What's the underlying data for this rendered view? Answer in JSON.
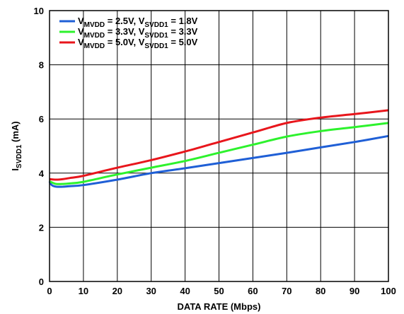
{
  "chart_data": {
    "type": "line",
    "xlabel": "DATA RATE (Mbps)",
    "ylabel": {
      "main": "I",
      "sub": "SVDD1",
      "unit": " (mA)"
    },
    "xlim": [
      0,
      100
    ],
    "ylim": [
      0,
      10
    ],
    "x_ticks": [
      0,
      10,
      20,
      30,
      40,
      50,
      60,
      70,
      80,
      90,
      100
    ],
    "y_ticks": [
      0,
      2,
      4,
      6,
      8,
      10
    ],
    "grid": true,
    "legend_position": "top-left",
    "series": [
      {
        "name": "VMVDD = 2.5V, VSVDD1 = 1.8V",
        "legend_parts": [
          {
            "t": "V",
            "sub": false
          },
          {
            "t": "MVDD",
            "sub": true
          },
          {
            "t": " = 2.5V, V",
            "sub": false
          },
          {
            "t": "SVDD1",
            "sub": true
          },
          {
            "t": " = 1.8V",
            "sub": false
          }
        ],
        "color": "#1f5fd6",
        "x": [
          0,
          0.5,
          1,
          2,
          4,
          6,
          10,
          20,
          30,
          40,
          50,
          60,
          70,
          80,
          90,
          100
        ],
        "y": [
          3.7,
          3.58,
          3.53,
          3.5,
          3.5,
          3.52,
          3.56,
          3.76,
          4.0,
          4.18,
          4.37,
          4.56,
          4.75,
          4.95,
          5.15,
          5.37
        ]
      },
      {
        "name": "VMVDD = 3.3V, VSVDD1 = 3.3V",
        "legend_parts": [
          {
            "t": "V",
            "sub": false
          },
          {
            "t": "MVDD",
            "sub": true
          },
          {
            "t": " = 3.3V, V",
            "sub": false
          },
          {
            "t": "SVDD1",
            "sub": true
          },
          {
            "t": " = 3.3V",
            "sub": false
          }
        ],
        "color": "#2df22d",
        "x": [
          0,
          1,
          2,
          4,
          6,
          10,
          20,
          30,
          40,
          50,
          60,
          70,
          80,
          90,
          100
        ],
        "y": [
          3.7,
          3.64,
          3.6,
          3.6,
          3.62,
          3.68,
          3.95,
          4.2,
          4.45,
          4.75,
          5.05,
          5.35,
          5.55,
          5.7,
          5.85
        ]
      },
      {
        "name": "VMVDD = 5.0V, VSVDD1 = 5.0V",
        "legend_parts": [
          {
            "t": "V",
            "sub": false
          },
          {
            "t": "MVDD",
            "sub": true
          },
          {
            "t": " = 5.0V, V",
            "sub": false
          },
          {
            "t": "SVDD1",
            "sub": true
          },
          {
            "t": " = 5.0V",
            "sub": false
          }
        ],
        "color": "#e8161c",
        "x": [
          0,
          2,
          4,
          6,
          10,
          20,
          30,
          40,
          50,
          60,
          70,
          80,
          90,
          100
        ],
        "y": [
          3.78,
          3.76,
          3.78,
          3.82,
          3.9,
          4.2,
          4.48,
          4.8,
          5.15,
          5.5,
          5.85,
          6.05,
          6.18,
          6.32
        ]
      }
    ]
  }
}
